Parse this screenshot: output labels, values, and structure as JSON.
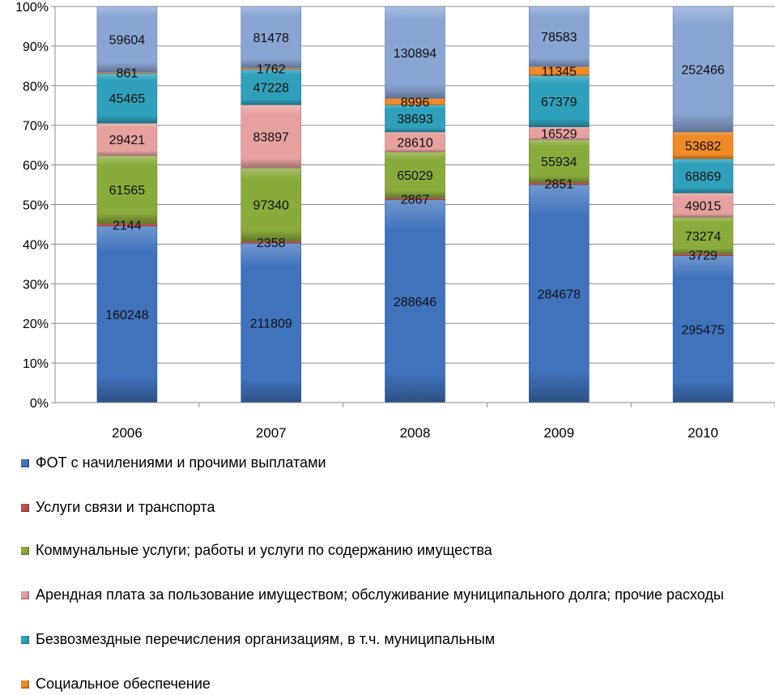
{
  "chart_data": {
    "type": "bar",
    "stacking": "percent",
    "categories": [
      "2006",
      "2007",
      "2008",
      "2009",
      "2010"
    ],
    "ylim": [
      0,
      100
    ],
    "yticks": [
      "0%",
      "10%",
      "20%",
      "30%",
      "40%",
      "50%",
      "60%",
      "70%",
      "80%",
      "90%",
      "100%"
    ],
    "grid": true,
    "legend_position": "bottom",
    "series": [
      {
        "name": "ФОТ с начилениями  и прочими выплатами",
        "color": "#3f74bd",
        "values": [
          160248,
          211809,
          288646,
          284678,
          295475
        ]
      },
      {
        "name": "Услуги связи и транспорта",
        "color": "#c0504d",
        "values": [
          2144,
          2358,
          2867,
          2851,
          3729
        ]
      },
      {
        "name": "Коммунальные услуги; работы и услуги по содержанию имущества",
        "color": "#8aab3c",
        "values": [
          61565,
          97340,
          65029,
          55934,
          73274
        ]
      },
      {
        "name": "Арендная плата за пользование имуществом; обслуживание муниципального долга; прочие расходы",
        "color": "#e6a19f",
        "values": [
          29421,
          83897,
          28610,
          16529,
          49015
        ]
      },
      {
        "name": "Безвозмездные перечисления  организациям, в т.ч. муниципальным",
        "color": "#2fa0bb",
        "values": [
          45465,
          47228,
          38693,
          67379,
          68869
        ]
      },
      {
        "name": "Социальное обеспечение",
        "color": "#f08a26",
        "values": [
          861,
          1762,
          8996,
          11345,
          53682
        ]
      },
      {
        "color": "#8aa5d4",
        "values": [
          59604,
          81478,
          130894,
          78583,
          252466
        ]
      }
    ]
  }
}
